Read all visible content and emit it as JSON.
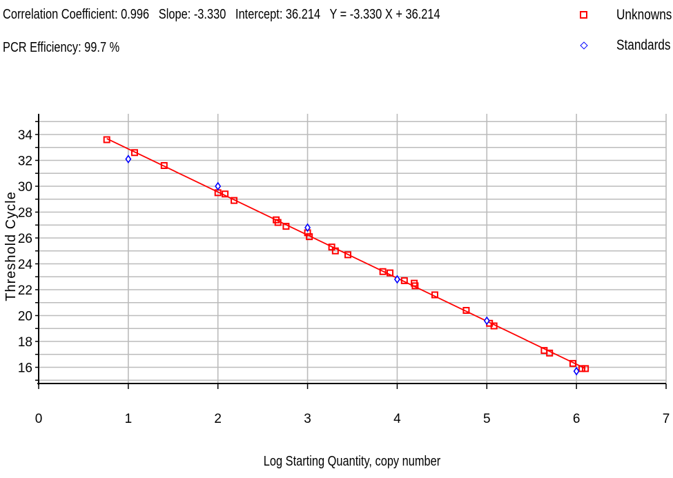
{
  "header": {
    "line1": "Correlation Coefficient: 0.996   Slope: -3.330   Intercept: 36.214   Y = -3.330 X + 36.214",
    "line2": "PCR Efficiency: 99.7 %"
  },
  "legend": {
    "unknowns": "Unknowns",
    "standards": "Standards"
  },
  "colors": {
    "unknowns": "#ff0000",
    "standards": "#0000ff",
    "fit_line": "#ff0000",
    "grid": "#bbbbbb"
  },
  "chart_data": {
    "type": "scatter",
    "xlabel": "Log Starting Quantity, copy number",
    "ylabel": "Threshold Cycle",
    "xlim": [
      0,
      7
    ],
    "ylim": [
      14.8,
      35.6
    ],
    "xticks": [
      0,
      1,
      2,
      3,
      4,
      5,
      6,
      7
    ],
    "yticks": [
      16,
      18,
      20,
      22,
      24,
      26,
      28,
      30,
      32,
      34
    ],
    "grid": true,
    "legend_position": "top-right",
    "fit": {
      "slope": -3.33,
      "intercept": 36.214,
      "x_range": [
        0.76,
        6.1
      ]
    },
    "series": [
      {
        "name": "Unknowns",
        "marker": "square",
        "points": [
          [
            0.76,
            33.6
          ],
          [
            1.07,
            32.6
          ],
          [
            1.4,
            31.6
          ],
          [
            2.0,
            29.5
          ],
          [
            2.08,
            29.4
          ],
          [
            2.18,
            28.9
          ],
          [
            2.65,
            27.4
          ],
          [
            2.67,
            27.2
          ],
          [
            2.76,
            26.9
          ],
          [
            3.0,
            26.4
          ],
          [
            3.02,
            26.1
          ],
          [
            3.27,
            25.3
          ],
          [
            3.31,
            25.0
          ],
          [
            3.45,
            24.7
          ],
          [
            3.84,
            23.4
          ],
          [
            3.92,
            23.3
          ],
          [
            4.08,
            22.7
          ],
          [
            4.19,
            22.5
          ],
          [
            4.2,
            22.3
          ],
          [
            4.42,
            21.6
          ],
          [
            4.77,
            20.4
          ],
          [
            5.03,
            19.4
          ],
          [
            5.08,
            19.2
          ],
          [
            5.64,
            17.3
          ],
          [
            5.7,
            17.1
          ],
          [
            5.96,
            16.3
          ],
          [
            6.06,
            15.9
          ],
          [
            6.1,
            15.9
          ]
        ]
      },
      {
        "name": "Standards",
        "marker": "diamond",
        "points": [
          [
            1.0,
            32.1
          ],
          [
            2.0,
            30.0
          ],
          [
            3.0,
            26.8
          ],
          [
            4.0,
            22.8
          ],
          [
            5.0,
            19.6
          ],
          [
            6.0,
            15.7
          ]
        ]
      }
    ]
  }
}
